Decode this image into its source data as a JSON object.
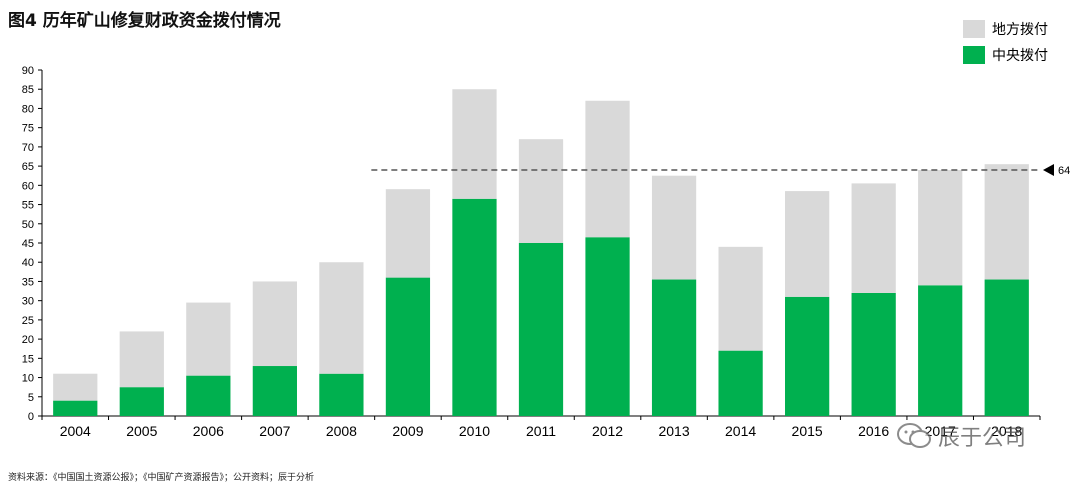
{
  "title": "图4 历年矿山修复财政资金拨付情况",
  "legend": {
    "local_label": "地方拨付",
    "central_label": "中央拨付"
  },
  "colors": {
    "central": "#00b04f",
    "local": "#d9d9d9",
    "ref_line": "#555555"
  },
  "source_note": "资料来源：《中国国土资源公报》；《中国矿产资源报告》；公开资料；辰于分析",
  "watermark": "辰于公司",
  "chart_data": {
    "type": "bar",
    "stacked": true,
    "categories": [
      "2004",
      "2005",
      "2006",
      "2007",
      "2008",
      "2009",
      "2010",
      "2011",
      "2012",
      "2013",
      "2014",
      "2015",
      "2016",
      "2017",
      "2018"
    ],
    "series": [
      {
        "name": "中央拨付",
        "values": [
          4,
          7.5,
          10.5,
          13,
          11,
          36,
          56.5,
          45,
          46.5,
          35.5,
          17,
          31,
          32,
          34,
          35.5
        ]
      },
      {
        "name": "地方拨付",
        "values": [
          7,
          14.5,
          19,
          22,
          29,
          23,
          28.5,
          27,
          35.5,
          27,
          27,
          27.5,
          28.5,
          30,
          30
        ]
      }
    ],
    "yticks": [
      0,
      5,
      10,
      15,
      20,
      25,
      30,
      35,
      40,
      45,
      50,
      55,
      60,
      65,
      70,
      75,
      80,
      85,
      90
    ],
    "ylim": [
      0,
      90
    ],
    "reference_line": {
      "value": 64,
      "label": "64"
    },
    "grid": false,
    "legend_position": "top-right"
  }
}
